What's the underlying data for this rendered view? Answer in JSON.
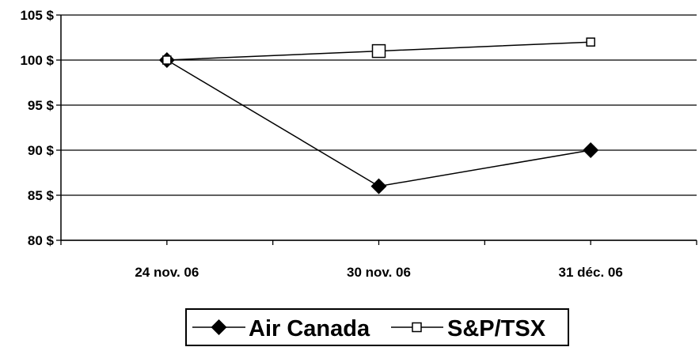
{
  "chart_data": {
    "type": "line",
    "categories": [
      "24 nov. 06",
      "30 nov. 06",
      "31 déc. 06"
    ],
    "series": [
      {
        "name": "Air Canada",
        "values": [
          100,
          86,
          90
        ],
        "marker": "diamond-filled",
        "color": "#000000"
      },
      {
        "name": "S&P/TSX",
        "values": [
          100,
          101,
          102
        ],
        "marker": "square-open",
        "color": "#000000"
      }
    ],
    "y_ticks": [
      "80 $",
      "85 $",
      "90 $",
      "95 $",
      "100 $",
      "105 $"
    ],
    "ylim": [
      80,
      105
    ],
    "y_tick_values": [
      80,
      85,
      90,
      95,
      100,
      105
    ],
    "grid": true,
    "legend_position": "bottom-center"
  }
}
